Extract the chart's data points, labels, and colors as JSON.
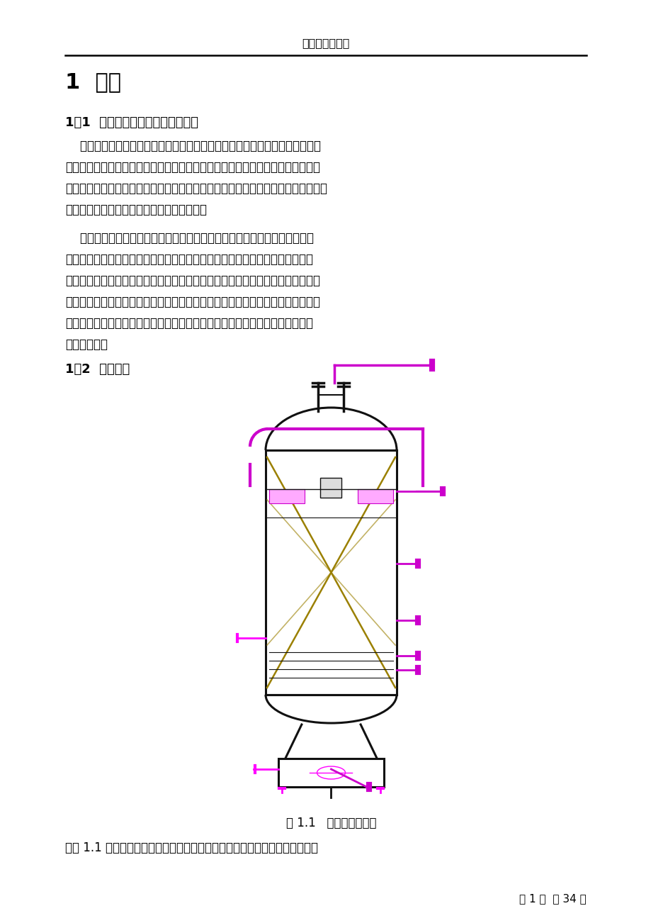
{
  "bg_color": "#ffffff",
  "header_text": "毕业设计说明书",
  "chapter_title": "1  引言",
  "section1_title": "1．1  加氢反应器的现状及发展趋势",
  "section2_title": "1．2  产品简介",
  "para1_lines": [
    "    加氢反应器是有机化学实验室和实际生产过程中一件非常重要的设备，不仅可",
    "以用作加氢反应的容器，而且也可用于液体和气体需要充分混合的场合。在化学制",
    "药方面有着广泛的用途，可作为产品开发、有机化学制品和医药品研究的基础设备，",
    "还可用于定量分析工业过程中催化剂的活性。"
  ],
  "para2_lines": [
    "    加氢反应器由于长期处于高温、高压、临氢、高温硫和硫化氢环境，其使用",
    "条件苛刻，因此设计和制造难度较大。长期以来，国内外对其设计、材料和制造",
    "技术进行了大量的理论研究和工程实践。特别是近年来，随着加氢装置的大型化，",
    "加氢反应器的制造周期加长、生产成本不断提高。为了缩短制造周期、降低生产成",
    "本，保证加氢反应器的安全可靠运行，研究人员开发了新材料，应用了许多新工",
    "艺、新技术。"
  ],
  "fig_caption": "图 1.1   加氢反应器简图",
  "last_line": "由图 1.1 可知：筒体两端连接椭圆形封头各一个，上封头上接有两个接管、一",
  "page_footer": "第 1 页  共 34 页",
  "text_color": "#000000",
  "line_color": "#000000",
  "purple": "#CC00CC",
  "magenta": "#FF00FF",
  "gold": "#B8860B",
  "dark": "#111111",
  "gray_fill": "#F8F8F8"
}
